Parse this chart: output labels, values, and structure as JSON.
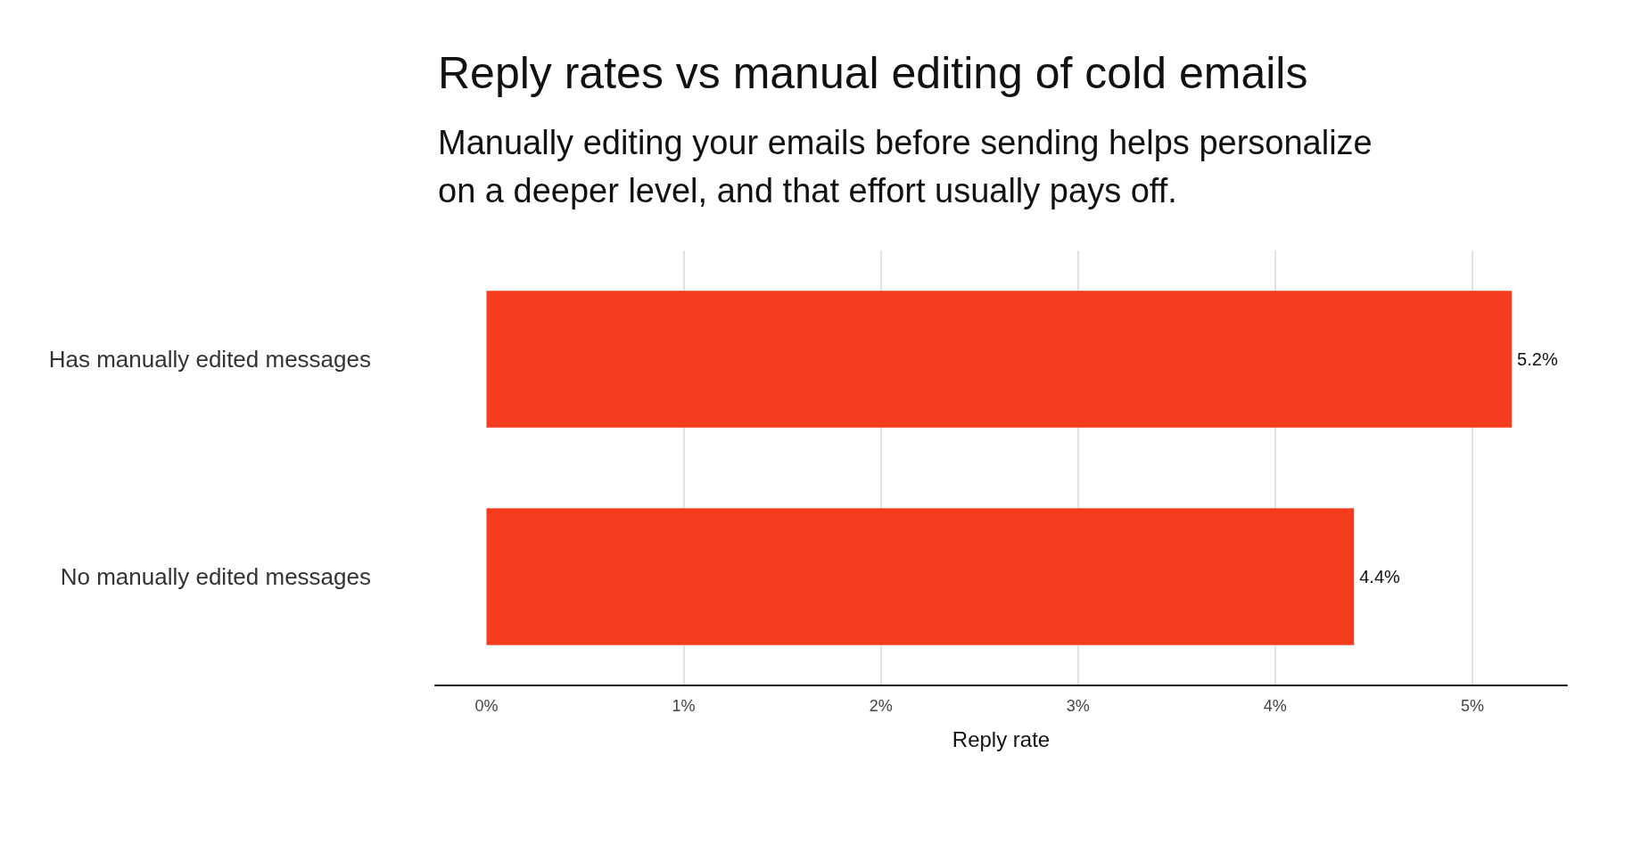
{
  "chart_data": {
    "type": "bar",
    "orientation": "horizontal",
    "title": "Reply rates vs manual editing of cold emails",
    "subtitle": "Manually editing your emails before sending helps personalize on a deeper level, and that effort usually pays off.",
    "categories": [
      "Has manually edited messages",
      "No manually edited messages"
    ],
    "values": [
      5.2,
      4.4
    ],
    "value_labels": [
      "5.2%",
      "4.4%"
    ],
    "color": "#f53c1e",
    "xlabel": "Reply rate",
    "xlim": [
      -0.26,
      5.48
    ],
    "xticks": [
      {
        "value": 0,
        "label": "0%"
      },
      {
        "value": 1,
        "label": "1%"
      },
      {
        "value": 2,
        "label": "2%"
      },
      {
        "value": 3,
        "label": "3%"
      },
      {
        "value": 4,
        "label": "4%"
      },
      {
        "value": 5,
        "label": "5%"
      }
    ],
    "grid": "x"
  }
}
